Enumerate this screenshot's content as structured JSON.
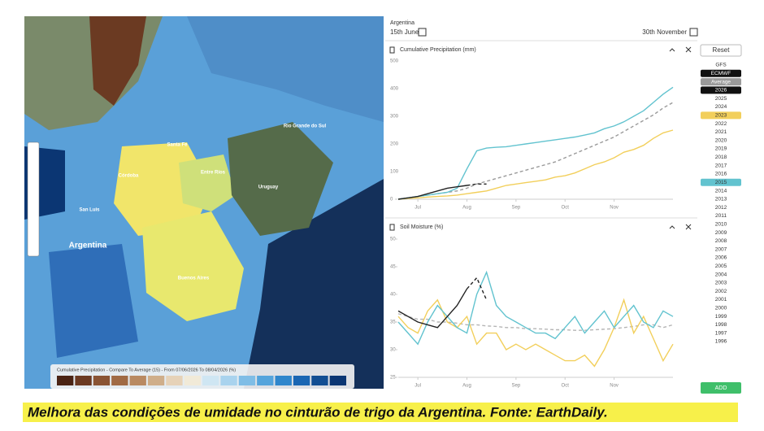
{
  "header": {
    "region": "Argentina",
    "start_date": "15th June",
    "end_date": "30th November"
  },
  "map": {
    "places": [
      "Argentina",
      "San Luis",
      "Córdoba",
      "Santa Fe",
      "Entre Ríos",
      "Buenos Aires",
      "Rio Grande do Sul",
      "Uruguay"
    ],
    "legend_title": "Cumulative Precipitation - Compare To Average (15) - From 07/06/2026 To 08/04/2026 (%)",
    "legend_colors": [
      "#4a2414",
      "#6b3a22",
      "#8a5434",
      "#a06a44",
      "#b98a62",
      "#cfae8a",
      "#e6d2b8",
      "#f1ead8",
      "#cfe6f3",
      "#a9d3ee",
      "#7fbde6",
      "#55a4dc",
      "#2f86cc",
      "#1a66b3",
      "#124e93",
      "#0b3673"
    ]
  },
  "sidebar": {
    "reset": "Reset",
    "add": "ADD",
    "items": [
      {
        "label": "GFS"
      },
      {
        "label": "ECMWF",
        "color": "#111111"
      },
      {
        "label": "Average",
        "color": "#9a9a9a"
      },
      {
        "label": "2026",
        "color": "#111111"
      },
      {
        "label": "2025"
      },
      {
        "label": "2024"
      },
      {
        "label": "2023",
        "color": "#f2cf5b"
      },
      {
        "label": "2022"
      },
      {
        "label": "2021"
      },
      {
        "label": "2020"
      },
      {
        "label": "2019"
      },
      {
        "label": "2018"
      },
      {
        "label": "2017"
      },
      {
        "label": "2016"
      },
      {
        "label": "2015",
        "color": "#62c3cf"
      },
      {
        "label": "2014"
      },
      {
        "label": "2013"
      },
      {
        "label": "2012"
      },
      {
        "label": "2011"
      },
      {
        "label": "2010"
      },
      {
        "label": "2009"
      },
      {
        "label": "2008"
      },
      {
        "label": "2007"
      },
      {
        "label": "2006"
      },
      {
        "label": "2005"
      },
      {
        "label": "2004"
      },
      {
        "label": "2003"
      },
      {
        "label": "2002"
      },
      {
        "label": "2001"
      },
      {
        "label": "2000"
      },
      {
        "label": "1999"
      },
      {
        "label": "1998"
      },
      {
        "label": "1997"
      },
      {
        "label": "1996"
      }
    ]
  },
  "chart_data": [
    {
      "type": "line",
      "title": "Cumulative Precipitation (mm)",
      "categories": [
        null,
        null,
        "Jul",
        null,
        null,
        null,
        null,
        "Aug",
        null,
        null,
        null,
        null,
        "Sep",
        null,
        null,
        null,
        null,
        "Oct",
        null,
        null,
        null,
        null,
        "Nov",
        null,
        null,
        null,
        null,
        null,
        null
      ],
      "ylim": [
        0,
        500
      ],
      "yticks": [
        0,
        100,
        200,
        300,
        400,
        500
      ],
      "series": [
        {
          "color": "#9a9a9a",
          "dash": true,
          "values": [
            0,
            5,
            10,
            15,
            20,
            25,
            30,
            40,
            55,
            65,
            75,
            85,
            95,
            105,
            115,
            125,
            135,
            150,
            165,
            180,
            195,
            210,
            225,
            245,
            265,
            285,
            305,
            330,
            350
          ]
        },
        {
          "color": "#f2cf5b",
          "values": [
            0,
            3,
            5,
            8,
            10,
            12,
            15,
            20,
            25,
            30,
            40,
            50,
            55,
            60,
            65,
            70,
            80,
            85,
            95,
            110,
            125,
            135,
            150,
            170,
            180,
            195,
            220,
            240,
            250
          ]
        },
        {
          "color": "#62c3cf",
          "values": [
            0,
            5,
            10,
            15,
            20,
            25,
            40,
            110,
            175,
            185,
            188,
            190,
            195,
            200,
            205,
            210,
            215,
            220,
            225,
            232,
            240,
            255,
            265,
            280,
            300,
            320,
            350,
            380,
            405
          ]
        },
        {
          "color": "#222222",
          "values": [
            0,
            5,
            10,
            20,
            30,
            40,
            45,
            50,
            null,
            null,
            null,
            null,
            null,
            null,
            null,
            null,
            null,
            null,
            null,
            null,
            null,
            null,
            null,
            null,
            null,
            null,
            null,
            null,
            null
          ]
        },
        {
          "color": "#222222",
          "dash": true,
          "values": [
            null,
            null,
            null,
            null,
            null,
            null,
            null,
            50,
            55,
            55,
            null,
            null,
            null,
            null,
            null,
            null,
            null,
            null,
            null,
            null,
            null,
            null,
            null,
            null,
            null,
            null,
            null,
            null,
            null
          ]
        }
      ]
    },
    {
      "type": "line",
      "title": "Soil Moisture (%)",
      "categories": [
        null,
        null,
        "Jul",
        null,
        null,
        null,
        null,
        "Aug",
        null,
        null,
        null,
        null,
        "Sep",
        null,
        null,
        null,
        null,
        "Oct",
        null,
        null,
        null,
        null,
        "Nov",
        null,
        null,
        null,
        null,
        null,
        null
      ],
      "ylim": [
        25,
        50
      ],
      "yticks": [
        25,
        30,
        35,
        40,
        45,
        50
      ],
      "series": [
        {
          "color": "#b5b5b5",
          "dash": true,
          "values": [
            36.5,
            36,
            35.5,
            35.5,
            35,
            35,
            34.8,
            34.5,
            34.5,
            34.3,
            34.2,
            34,
            34,
            33.8,
            33.8,
            33.7,
            33.6,
            33.6,
            33.5,
            33.5,
            33.6,
            33.7,
            33.8,
            34,
            34.2,
            34.5,
            34.5,
            34,
            34.5
          ]
        },
        {
          "color": "#f2cf5b",
          "values": [
            36,
            34,
            33,
            37,
            39,
            35,
            34,
            36,
            31,
            33,
            33,
            30,
            31,
            30,
            31,
            30,
            29,
            28,
            28,
            29,
            27,
            30,
            34,
            39,
            33,
            36,
            32,
            28,
            31
          ]
        },
        {
          "color": "#62c3cf",
          "values": [
            35,
            33,
            31,
            35,
            38,
            36,
            34,
            33,
            40,
            44,
            38,
            36,
            35,
            34,
            33,
            33,
            32,
            34,
            36,
            33,
            35,
            37,
            34,
            36,
            38,
            35,
            34,
            37,
            36
          ]
        },
        {
          "color": "#222222",
          "values": [
            37,
            36,
            35,
            34.5,
            34,
            36,
            38,
            41,
            null,
            null,
            null,
            null,
            null,
            null,
            null,
            null,
            null,
            null,
            null,
            null,
            null,
            null,
            null,
            null,
            null,
            null,
            null,
            null,
            null
          ]
        },
        {
          "color": "#222222",
          "dash": true,
          "values": [
            null,
            null,
            null,
            null,
            null,
            null,
            null,
            41,
            43,
            39,
            null,
            null,
            null,
            null,
            null,
            null,
            null,
            null,
            null,
            null,
            null,
            null,
            null,
            null,
            null,
            null,
            null,
            null,
            null
          ]
        }
      ]
    }
  ],
  "caption": "Melhora das condições de umidade no cinturão de trigo da Argentina. Fonte: EarthDaily."
}
